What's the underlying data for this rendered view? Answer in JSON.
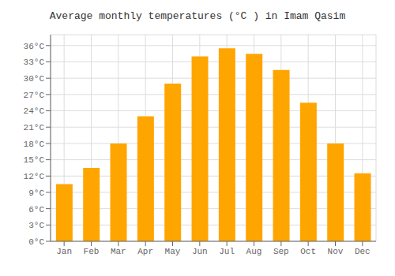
{
  "chart_data": {
    "type": "bar",
    "title": "Average monthly temperatures (°C ) in Imam Qasim",
    "categories": [
      "Jan",
      "Feb",
      "Mar",
      "Apr",
      "May",
      "Jun",
      "Jul",
      "Aug",
      "Sep",
      "Oct",
      "Nov",
      "Dec"
    ],
    "values": [
      10.5,
      13.5,
      18,
      23,
      29,
      34,
      35.5,
      34.5,
      31.5,
      25.5,
      18,
      12.5
    ],
    "color": "#FFA500",
    "ylim": [
      0,
      38
    ],
    "yticks": [
      {
        "value": 0,
        "label": "0°C"
      },
      {
        "value": 3,
        "label": "3°C"
      },
      {
        "value": 6,
        "label": "6°C"
      },
      {
        "value": 9,
        "label": "9°C"
      },
      {
        "value": 12,
        "label": "12°C"
      },
      {
        "value": 15,
        "label": "15°C"
      },
      {
        "value": 18,
        "label": "18°C"
      },
      {
        "value": 21,
        "label": "21°C"
      },
      {
        "value": 24,
        "label": "24°C"
      },
      {
        "value": 27,
        "label": "27°C"
      },
      {
        "value": 30,
        "label": "30°C"
      },
      {
        "value": 33,
        "label": "33°C"
      },
      {
        "value": 36,
        "label": "36°C"
      }
    ],
    "grid": true
  }
}
